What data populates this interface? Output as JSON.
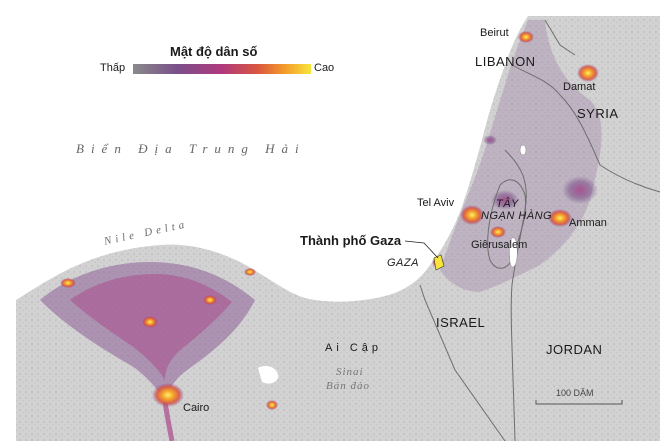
{
  "legend": {
    "title": "Mật độ dân số",
    "low_label": "Thấp",
    "high_label": "Cao",
    "gradient_colors": [
      "#8a8a8a",
      "#7b4f8a",
      "#b0397e",
      "#d9573f",
      "#f39a2a",
      "#f7e53a"
    ]
  },
  "labels": {
    "beirut": "Beirut",
    "lebanon": "LIBANON",
    "damascus": "Damat",
    "syria": "SYRIA",
    "sea": "Biển Địa Trung Hải",
    "tel_aviv": "Tel Aviv",
    "west_bank_line1": "TÂY",
    "west_bank_line2": "NGẠN HÀNG",
    "amman": "Amman",
    "gaza_city": "Thành phố Gaza",
    "gaza": "GAZA",
    "jerusalem": "Giêrusalem",
    "nile_delta": "Nile Delta",
    "egypt": "Ai Cập",
    "israel": "ISRAEL",
    "jordan": "JORDAN",
    "sinai_line1": "Sinai",
    "sinai_line2": "Bán đảo",
    "cairo": "Cairo"
  },
  "scale_bar": {
    "label": "100 DẶM"
  },
  "colors": {
    "sea": "#ffffff",
    "land": "#d4d4d4",
    "density_low": "#7b4f8a",
    "density_mid": "#d9573f",
    "density_high": "#f7e53a",
    "border": "#6e6e6e"
  }
}
